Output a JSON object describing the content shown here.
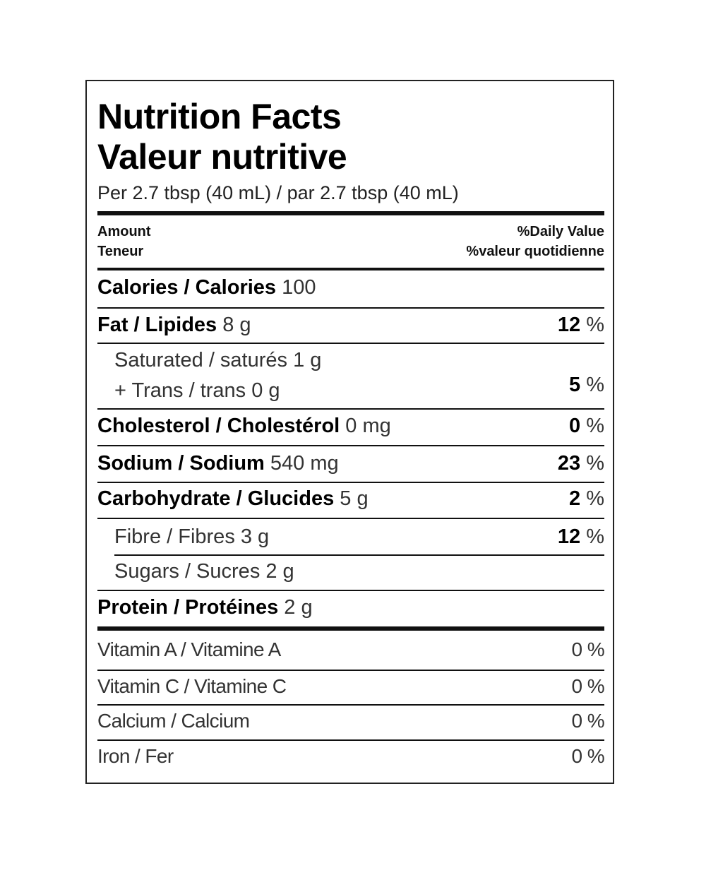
{
  "title_en": "Nutrition Facts",
  "title_fr": "Valeur nutritive",
  "serving": "Per 2.7 tbsp (40 mL) / par 2.7 tbsp (40 mL)",
  "header": {
    "amount_en": "Amount",
    "amount_fr": "Teneur",
    "dv_en": "%Daily Value",
    "dv_fr": "%valeur quotidienne"
  },
  "calories": {
    "label": "Calories / Calories",
    "value": "100"
  },
  "fat": {
    "label": "Fat / Lipides",
    "value": "8 g",
    "dv": "12",
    "unit": "%"
  },
  "saturated": {
    "label": "Saturated / saturés 1 g"
  },
  "trans": {
    "label": "+ Trans / trans 0 g",
    "dv": "5",
    "unit": "%"
  },
  "cholesterol": {
    "label": "Cholesterol / Cholestérol",
    "value": "0 mg",
    "dv": "0",
    "unit": "%"
  },
  "sodium": {
    "label": "Sodium / Sodium",
    "value": "540 mg",
    "dv": "23",
    "unit": "%"
  },
  "carbohydrate": {
    "label": "Carbohydrate / Glucides",
    "value": "5 g",
    "dv": "2",
    "unit": "%"
  },
  "fibre": {
    "label": "Fibre / Fibres 3 g",
    "dv": "12",
    "unit": "%"
  },
  "sugars": {
    "label": "Sugars / Sucres 2 g"
  },
  "protein": {
    "label": "Protein / Protéines",
    "value": "2 g"
  },
  "vitamins": [
    {
      "label": "Vitamin A / Vitamine A",
      "dv": "0 %"
    },
    {
      "label": "Vitamin C / Vitamine C",
      "dv": "0 %"
    },
    {
      "label": "Calcium / Calcium",
      "dv": "0 %"
    },
    {
      "label": "Iron / Fer",
      "dv": "0 %"
    }
  ]
}
